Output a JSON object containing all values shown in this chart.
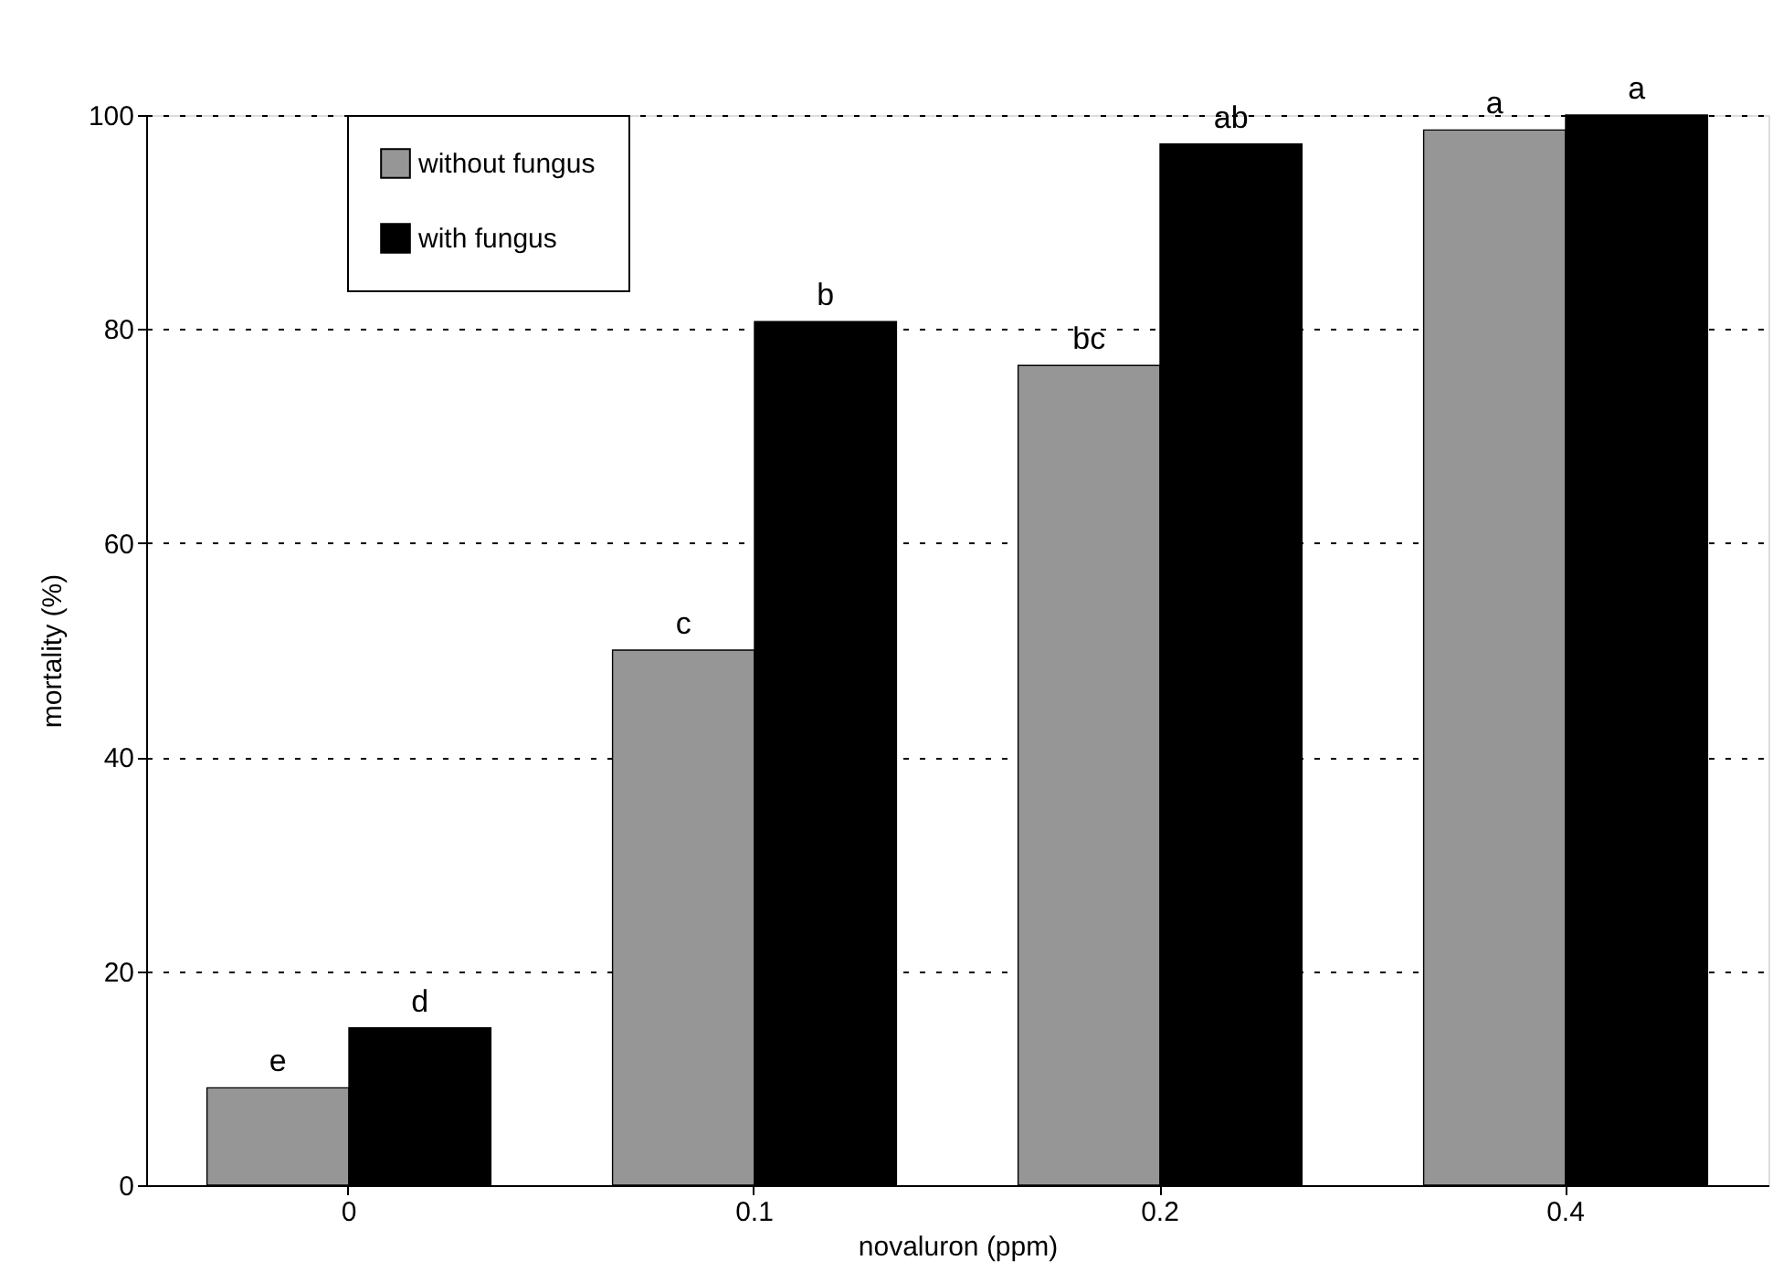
{
  "chart_data": {
    "type": "bar",
    "xlabel": "novaluron (ppm)",
    "ylabel": "mortality (%)",
    "categories": [
      "0",
      "0.1",
      "0.2",
      "0.4"
    ],
    "series": [
      {
        "name": "without fungus",
        "color": "#969696",
        "values": [
          9.1,
          50,
          76.6,
          98.6
        ]
      },
      {
        "name": "with fungus",
        "color": "#000000",
        "values": [
          14.7,
          80.7,
          97.3,
          100
        ]
      }
    ],
    "ylim": [
      0,
      100
    ],
    "yticks": [
      0,
      20,
      40,
      60,
      80,
      100
    ],
    "grid": "y",
    "legend": "top left",
    "annotations": [
      {
        "text": "e",
        "x": "0",
        "y": 9.1
      },
      {
        "text": "d",
        "x": "0",
        "y": 14.7
      },
      {
        "text": "c",
        "x": "0.1",
        "y": 50
      },
      {
        "text": "b",
        "x": "0.1",
        "y": 80.7
      },
      {
        "text": "bc",
        "x": "0.2",
        "y": 76.6
      },
      {
        "text": "ab",
        "x": "0.2",
        "y": 97.3
      },
      {
        "text": "a",
        "x": "0.4",
        "y": 98.6
      },
      {
        "text": "a",
        "x": "0.4",
        "y": 100
      }
    ]
  }
}
